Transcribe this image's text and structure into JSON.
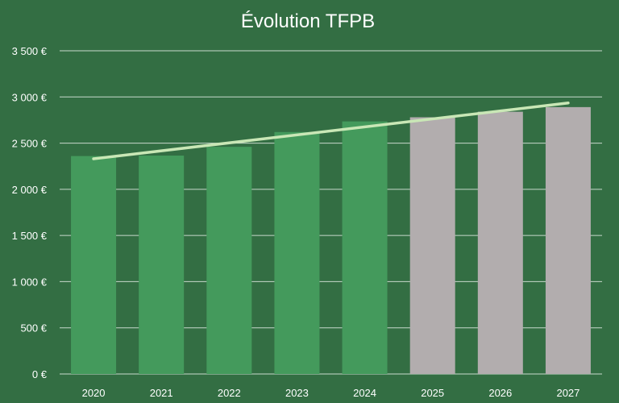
{
  "chart_data": {
    "type": "bar",
    "title": "Évolution TFPB",
    "categories": [
      "2020",
      "2021",
      "2022",
      "2023",
      "2024",
      "2025",
      "2026",
      "2027"
    ],
    "values": [
      2360,
      2365,
      2460,
      2620,
      2735,
      2780,
      2840,
      2890
    ],
    "bar_colors": [
      "#449a5c",
      "#449a5c",
      "#449a5c",
      "#449a5c",
      "#449a5c",
      "#b2adae",
      "#b2adae",
      "#b2adae"
    ],
    "trendline": {
      "type": "linear",
      "start": 2330,
      "end": 2935,
      "color": "#c9e7b6"
    },
    "ylim": [
      0,
      3500
    ],
    "yticks": [
      0,
      500,
      1000,
      1500,
      2000,
      2500,
      3000,
      3500
    ],
    "ytick_labels": [
      "0 €",
      "500 €",
      "1 000 €",
      "1 500 €",
      "2 000 €",
      "2 500 €",
      "3 000 €",
      "3 500 €"
    ],
    "grid": true,
    "legend": "none",
    "background": "#336e43",
    "gridline_color": "#c8d9cc"
  }
}
